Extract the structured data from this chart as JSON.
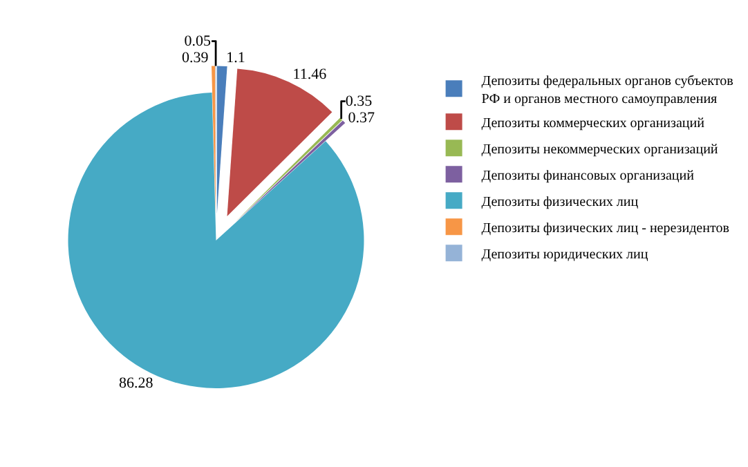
{
  "chart_data": {
    "type": "pie",
    "categories": [
      "Депозиты федеральных органов субъектов РФ и органов местного самоуправления",
      "Депозиты коммерческих организаций",
      "Депозиты некоммерческих организаций",
      "Депозиты финансовых организаций",
      "Депозиты физических лиц",
      "Депозиты физических лиц - нерезидентов",
      "Депозиты юридических лиц"
    ],
    "values": [
      1.1,
      11.46,
      0.35,
      0.37,
      86.28,
      0.39,
      0.05
    ],
    "colors": [
      "#4a7ebb",
      "#be4b48",
      "#98b954",
      "#7d60a0",
      "#46aac5",
      "#f79646",
      "#95b3d7"
    ],
    "data_labels": true,
    "legend": "right"
  }
}
